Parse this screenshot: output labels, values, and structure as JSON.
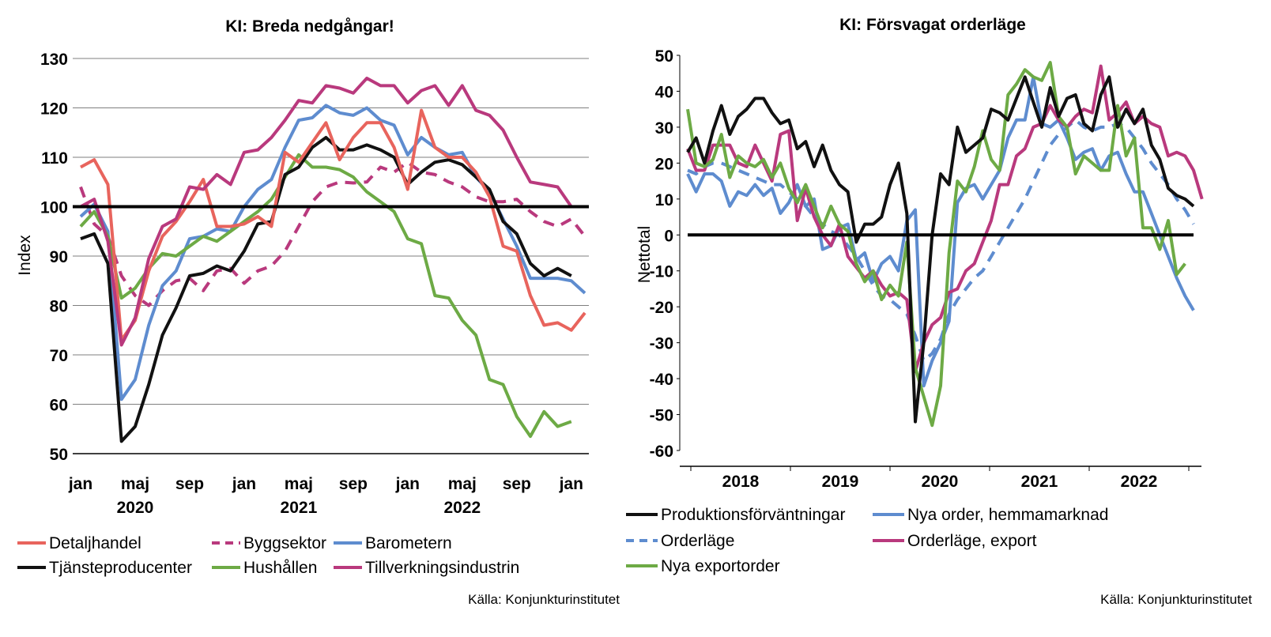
{
  "chart_data": [
    {
      "type": "line",
      "title": "KI: Breda nedgångar!",
      "ylabel": "Index",
      "ylim": [
        50,
        130
      ],
      "yticks": [
        "130",
        "120",
        "110",
        "100",
        "90",
        "80",
        "70",
        "60",
        "50"
      ],
      "x_month_labels": [
        "jan",
        "maj",
        "sep",
        "jan",
        "maj",
        "sep",
        "jan",
        "maj",
        "sep",
        "jan"
      ],
      "x_year_labels": [
        "2020",
        "2021",
        "2022"
      ],
      "x_start": "2020-01",
      "x_end": "2023-01",
      "reference_line": 100,
      "source": "Källa: Konjunkturinstitutet",
      "series": [
        {
          "name": "Detaljhandel",
          "color": "#e8645d",
          "dashed": false,
          "values": [
            108,
            109.5,
            104.5,
            73,
            77,
            87,
            94,
            97,
            101,
            105.5,
            96,
            96,
            96.5,
            98,
            96,
            111,
            109,
            113,
            117,
            109.5,
            114,
            117,
            117,
            112,
            103.5,
            119.5,
            112,
            110,
            110,
            107,
            102,
            92,
            91,
            82,
            76,
            76.5,
            75,
            78.5
          ]
        },
        {
          "name": "Byggsektor",
          "color": "#b9397d",
          "dashed": true,
          "values": [
            104,
            96.5,
            94,
            86,
            82,
            80,
            83,
            85,
            85.5,
            83,
            87,
            87.5,
            84.5,
            87,
            88,
            91,
            96,
            101,
            104,
            105,
            104.8,
            105,
            108,
            107,
            109,
            107,
            106.5,
            105,
            104,
            102,
            101,
            101,
            101.5,
            99,
            97,
            96,
            97.5,
            94
          ]
        },
        {
          "name": "Barometern",
          "color": "#5e8ccf",
          "dashed": false,
          "values": [
            98,
            100.5,
            95,
            61,
            65,
            76,
            84,
            87,
            93.5,
            94,
            95.5,
            95,
            100,
            103.5,
            105.5,
            112,
            117.5,
            118,
            120.5,
            119,
            118.5,
            120,
            117.5,
            116.5,
            110.5,
            114,
            112,
            110.5,
            111,
            106,
            103,
            97.5,
            92,
            85.5,
            85.5,
            85.5,
            85,
            82.5
          ]
        },
        {
          "name": "Tjänsteproducenter",
          "color": "#111111",
          "dashed": false,
          "values": [
            93.5,
            94.5,
            88.5,
            52.5,
            55.5,
            64,
            74,
            79.5,
            86,
            86.5,
            88,
            87,
            91,
            96.5,
            97,
            106.5,
            108,
            112,
            114,
            111.5,
            111.5,
            112.5,
            111.5,
            110,
            104.5,
            107,
            109,
            109.5,
            108.5,
            106,
            103.5,
            97,
            94.5,
            88.5,
            86,
            87.5,
            86
          ]
        },
        {
          "name": "Hushållen",
          "color": "#6daa45",
          "dashed": false,
          "values": [
            96,
            99,
            94,
            81.5,
            83.5,
            87.5,
            90.5,
            90,
            92,
            94,
            93,
            95,
            97,
            99,
            101.5,
            106,
            110.5,
            108,
            108,
            107.5,
            106,
            103,
            101,
            99,
            93.5,
            92.5,
            82,
            81.5,
            77,
            74,
            65,
            64,
            57.5,
            53.5,
            58.5,
            55.5,
            56.5
          ]
        },
        {
          "name": "Tillverkningsindustrin",
          "color": "#b9397d",
          "dashed": false,
          "values": [
            100,
            101.5,
            93,
            72,
            77.5,
            89.5,
            96,
            97.5,
            104,
            103.5,
            106.5,
            104.5,
            111,
            111.5,
            114,
            117.5,
            121.5,
            121,
            124.5,
            124,
            123,
            126,
            124.5,
            124.5,
            121,
            123.5,
            124.5,
            120.5,
            124.5,
            119.5,
            118.5,
            115.5,
            110,
            105,
            104.5,
            104,
            100
          ]
        }
      ]
    },
    {
      "type": "line",
      "title": "KI: Försvagat orderläge",
      "ylabel": "Nettotal",
      "ylim": [
        -60,
        50
      ],
      "yticks": [
        "50",
        "40",
        "30",
        "20",
        "10",
        "0",
        "-10",
        "-20",
        "-30",
        "-40",
        "-50",
        "-60"
      ],
      "x_year_labels": [
        "2018",
        "2019",
        "2020",
        "2021",
        "2022"
      ],
      "x_start": "2018-01",
      "x_end": "2022-12",
      "reference_line": 0,
      "source": "Källa: Konjunkturinstitutet",
      "series": [
        {
          "name": "Produktionsförväntningar",
          "color": "#111111",
          "dashed": false,
          "values": [
            23,
            27,
            20,
            29,
            36,
            28,
            33,
            35,
            38,
            38,
            34,
            31,
            32,
            24,
            26,
            19,
            25,
            18,
            14,
            12,
            -2,
            3,
            3,
            5,
            14,
            20,
            6,
            -52,
            -30,
            0,
            17,
            14,
            30,
            23,
            25,
            27,
            35,
            34,
            32,
            38,
            44,
            37,
            30,
            41,
            33,
            38,
            39,
            31,
            29,
            39,
            44,
            30,
            35,
            31,
            35,
            25,
            21,
            13,
            11,
            10,
            8
          ]
        },
        {
          "name": "Nya order, hemmamarknad",
          "color": "#5e8ccf",
          "dashed": false,
          "values": [
            17,
            12,
            17,
            17,
            15,
            8,
            12,
            11,
            14,
            11,
            13,
            6,
            9,
            14,
            8,
            10,
            -4,
            -3,
            2,
            3,
            -7,
            -5,
            -13,
            -8,
            -6,
            -10,
            4,
            7,
            -42,
            -35,
            -30,
            -24,
            9,
            13,
            14,
            10,
            14,
            18,
            27,
            32,
            32,
            44,
            31,
            30,
            32,
            27,
            21,
            23,
            24,
            18,
            22,
            23,
            17,
            12,
            12,
            6,
            0,
            -6,
            -12,
            -17,
            -21
          ]
        },
        {
          "name": "Orderläge",
          "color": "#5e8ccf",
          "dashed": true,
          "values": [
            18,
            17,
            19,
            20,
            20,
            19,
            18,
            17,
            16,
            15,
            14,
            14,
            12,
            10,
            8,
            5,
            3,
            1,
            0,
            -3,
            -6,
            -10,
            -14,
            -17,
            -18,
            -20,
            -22,
            -28,
            -35,
            -33,
            -29,
            -22,
            -18,
            -15,
            -12,
            -10,
            -6,
            -2,
            2,
            6,
            10,
            15,
            20,
            25,
            28,
            30,
            32,
            30,
            29,
            30,
            30,
            31,
            30,
            27,
            24,
            20,
            17,
            14,
            10,
            7,
            3
          ]
        },
        {
          "name": "Orderläge, export",
          "color": "#b9397d",
          "dashed": false,
          "values": [
            24,
            18,
            18,
            25,
            25,
            25,
            20,
            19,
            25,
            20,
            15,
            28,
            29,
            4,
            13,
            5,
            0,
            -3,
            3,
            -6,
            -9,
            -12,
            -10,
            -14,
            -17,
            -16,
            -18,
            -38,
            -30,
            -25,
            -23,
            -16,
            -15,
            -10,
            -8,
            -2,
            4,
            14,
            14,
            22,
            24,
            30,
            31,
            36,
            32,
            30,
            33,
            35,
            34,
            47,
            32,
            34,
            37,
            31,
            33,
            31,
            30,
            22,
            23,
            22,
            18,
            10
          ]
        },
        {
          "name": "Nya exportorder",
          "color": "#6daa45",
          "dashed": false,
          "values": [
            35,
            20,
            19,
            21,
            28,
            16,
            22,
            20,
            19,
            21,
            16,
            20,
            13,
            9,
            14,
            8,
            2,
            8,
            3,
            1,
            -8,
            -13,
            -10,
            -18,
            -14,
            -17,
            -2,
            -37,
            -45,
            -53,
            -42,
            -5,
            15,
            12,
            19,
            29,
            21,
            18,
            39,
            42,
            46,
            44,
            43,
            48,
            33,
            30,
            17,
            22,
            20,
            18,
            18,
            36,
            22,
            27,
            2,
            2,
            -4,
            4,
            -11,
            -8
          ]
        }
      ]
    }
  ]
}
